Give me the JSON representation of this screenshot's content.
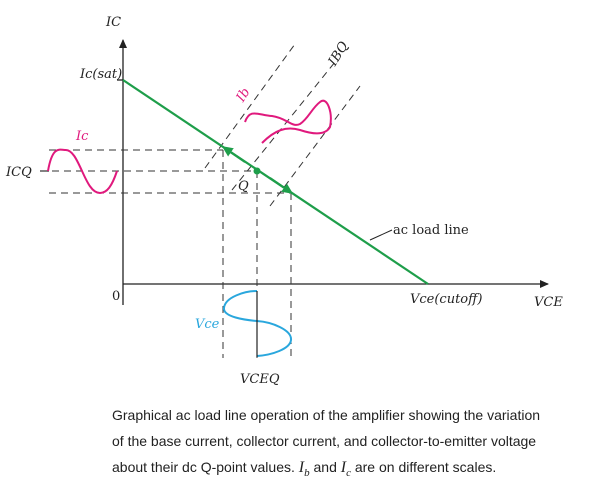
{
  "diagram": {
    "axis_y_label": "IC",
    "axis_x_label": "VCE",
    "origin_label": "0",
    "ic_sat_label": "Ic(sat)",
    "vce_cutoff_label": "Vce(cutoff)",
    "icq_label": "ICQ",
    "vceq_label": "VCEQ",
    "ibq_label": "IBQ",
    "ib_label": "Ib",
    "ic_label": "Ic",
    "vce_label": "Vce",
    "q_label": "Q",
    "load_line_label": "ac load line",
    "colors": {
      "load_line": "#1e9e4a",
      "ib_wave": "#e0197d",
      "ic_wave": "#e0197d",
      "vce_wave": "#2aa7dd",
      "dashed": "#333333"
    }
  },
  "caption": {
    "line1": "Graphical ac load line operation of  the amplifier showing the variation",
    "line2": "of the base current, collector current,   and collector-to-emitter voltage",
    "line3_a": "about their dc Q-point values. ",
    "line3_ib": "I",
    "line3_ib_sub": "b",
    "line3_b": " and  ",
    "line3_ic": "I",
    "line3_ic_sub": "c",
    "line3_c": " are on different scales."
  }
}
